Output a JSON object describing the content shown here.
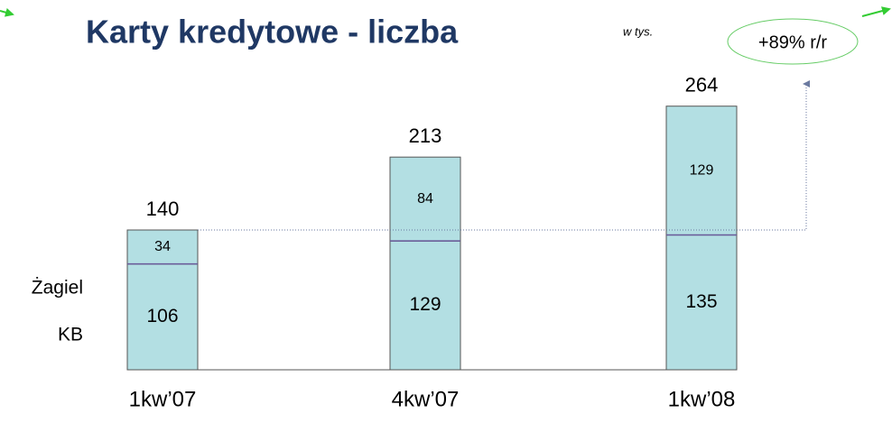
{
  "chart_data": {
    "type": "stacked_bar",
    "title": "Karty kredytowe - liczba",
    "subtitle": "w tys.",
    "annotation": "+89% r/r",
    "categories": [
      "1kw’07",
      "4kw’07",
      "1kw’08"
    ],
    "series": [
      {
        "name": "KB",
        "color": "#b3dfe3",
        "values": [
          106,
          129,
          135
        ]
      },
      {
        "name": "Żagiel",
        "color": "#b3dfe3",
        "values": [
          34,
          84,
          129
        ]
      }
    ],
    "totals": [
      140,
      213,
      264
    ],
    "ylim": [
      0,
      280
    ]
  }
}
